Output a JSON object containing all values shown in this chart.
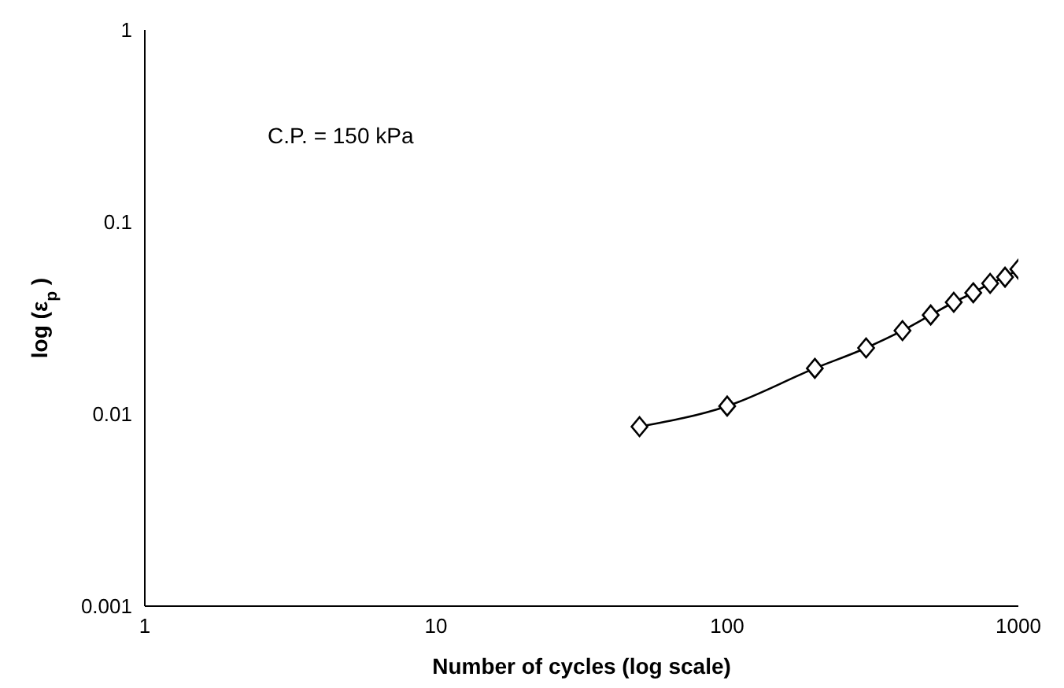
{
  "chart_data": {
    "type": "line",
    "xlabel": "Number of cycles (log scale)",
    "ylabel": "log (ε$_{p}$)",
    "annotations": [
      "C.P. = 150 kPa"
    ],
    "x": [
      50,
      100,
      200,
      300,
      400,
      500,
      600,
      700,
      800,
      900,
      1000
    ],
    "series": [
      {
        "color": "#000000",
        "values": [
          0.0086,
          0.011,
          0.0173,
          0.0221,
          0.0272,
          0.0328,
          0.0382,
          0.0428,
          0.0479,
          0.0516,
          0.0568
        ]
      }
    ],
    "xlim": [
      1,
      1000
    ],
    "xticks": [
      1,
      10,
      100,
      1000
    ],
    "ylim": [
      0.001,
      1
    ],
    "yticks": [
      0.001,
      0.01,
      0.1,
      1
    ],
    "log": "xy",
    "grid": false,
    "marker": "diamond",
    "line_style": "solid"
  }
}
